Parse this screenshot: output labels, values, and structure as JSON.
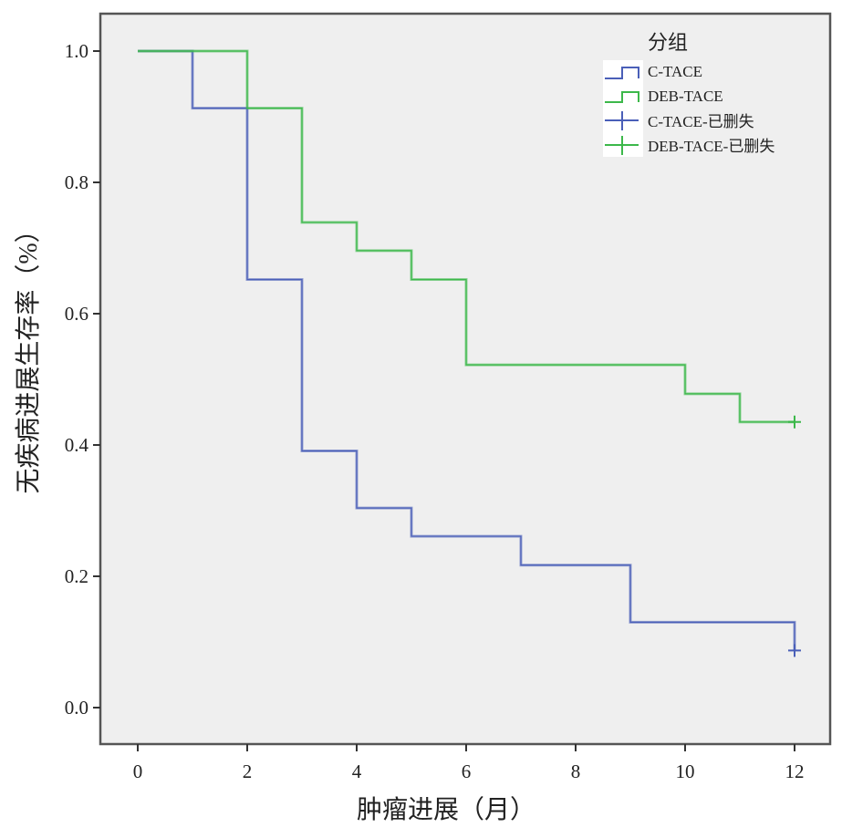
{
  "chart_data": {
    "type": "line",
    "subtype": "kaplan-meier-step",
    "xlabel": "肿瘤进展（月）",
    "ylabel": "无疾病进展生存率（%）",
    "xlim": [
      -0.7,
      12.6
    ],
    "ylim": [
      -0.055,
      1.055
    ],
    "xticks": [
      "0",
      "2",
      "4",
      "6",
      "8",
      "10",
      "12"
    ],
    "yticks": [
      "0.0",
      "0.2",
      "0.4",
      "0.6",
      "0.8",
      "1.0"
    ],
    "grid": false,
    "legend": {
      "title": "分组",
      "position": "top-right",
      "entries": [
        "C-TACE",
        "DEB-TACE",
        "C-TACE-已删失",
        "DEB-TACE-已删失"
      ]
    },
    "series": [
      {
        "name": "C-TACE",
        "color": "#4a5fb8",
        "x": [
          0,
          1,
          2,
          3,
          4,
          5,
          7,
          9,
          12
        ],
        "y": [
          1.0,
          0.913,
          0.652,
          0.391,
          0.304,
          0.261,
          0.217,
          0.13,
          0.087
        ],
        "censored": [
          {
            "x": 12,
            "y": 0.087
          }
        ]
      },
      {
        "name": "DEB-TACE",
        "color": "#3cb84a",
        "x": [
          0,
          2,
          3,
          4,
          5,
          6,
          10,
          11
        ],
        "y": [
          1.0,
          0.913,
          0.739,
          0.696,
          0.652,
          0.522,
          0.478,
          0.435
        ],
        "end_x": 12,
        "censored": [
          {
            "x": 12,
            "y": 0.435
          }
        ]
      }
    ]
  }
}
